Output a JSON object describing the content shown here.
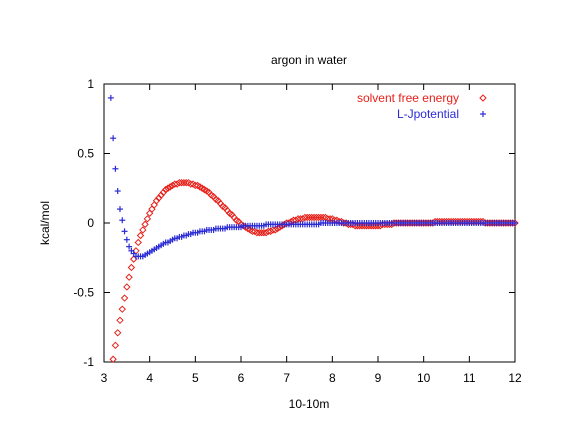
{
  "chart_data": {
    "type": "scatter",
    "title": "argon in water",
    "xlabel": "10-10m",
    "ylabel": "kcal/mol",
    "xlim": [
      3,
      12
    ],
    "ylim": [
      -1,
      1
    ],
    "grid": false,
    "legend_position": "top-right",
    "x_ticks": [
      "3",
      "4",
      "5",
      "6",
      "7",
      "8",
      "9",
      "10",
      "11",
      "12"
    ],
    "y_ticks": [
      "1",
      "0.5",
      "0",
      "-0.5",
      "-1"
    ],
    "series": [
      {
        "name": "solvent free energy",
        "marker": "diamond",
        "color": "#e8201a",
        "x": [
          3.2,
          3.25,
          3.3,
          3.35,
          3.4,
          3.45,
          3.5,
          3.55,
          3.6,
          3.65,
          3.7,
          3.75,
          3.8,
          3.85,
          3.9,
          3.95,
          4.0,
          4.05,
          4.1,
          4.15,
          4.2,
          4.25,
          4.3,
          4.35,
          4.4,
          4.45,
          4.5,
          4.55,
          4.6,
          4.65,
          4.7,
          4.75,
          4.8,
          4.85,
          4.9,
          4.95,
          5.0,
          5.05,
          5.1,
          5.15,
          5.2,
          5.25,
          5.3,
          5.35,
          5.4,
          5.45,
          5.5,
          5.55,
          5.6,
          5.65,
          5.7,
          5.75,
          5.8,
          5.85,
          5.9,
          5.95,
          6.0,
          6.05,
          6.1,
          6.15,
          6.2,
          6.25,
          6.3,
          6.35,
          6.4,
          6.45,
          6.5,
          6.55,
          6.6,
          6.65,
          6.7,
          6.75,
          6.8,
          6.85,
          6.9,
          6.95,
          7.0,
          7.05,
          7.1,
          7.15,
          7.2,
          7.25,
          7.3,
          7.35,
          7.4,
          7.45,
          7.5,
          7.55,
          7.6,
          7.65,
          7.7,
          7.75,
          7.8,
          7.85,
          7.9,
          7.95,
          8.0,
          8.05,
          8.1,
          8.15,
          8.2,
          8.25,
          8.3,
          8.35,
          8.4,
          8.45,
          8.5,
          8.55,
          8.6,
          8.65,
          8.7,
          8.75,
          8.8,
          8.85,
          8.9,
          8.95,
          9.0,
          9.05,
          9.1,
          9.15,
          9.2,
          9.25,
          9.3,
          9.35,
          9.4,
          9.45,
          9.5,
          9.55,
          9.6,
          9.65,
          9.7,
          9.75,
          9.8,
          9.85,
          9.9,
          9.95,
          10.0,
          10.05,
          10.1,
          10.15,
          10.2,
          10.25,
          10.3,
          10.35,
          10.4,
          10.45,
          10.5,
          10.55,
          10.6,
          10.65,
          10.7,
          10.75,
          10.8,
          10.85,
          10.9,
          10.95,
          11.0,
          11.05,
          11.1,
          11.15,
          11.2,
          11.25,
          11.3,
          11.35,
          11.4,
          11.45,
          11.5,
          11.55,
          11.6,
          11.65,
          11.7,
          11.75,
          11.8,
          11.85,
          11.9,
          11.95,
          12.0
        ],
        "y": [
          -0.98,
          -0.88,
          -0.79,
          -0.7,
          -0.62,
          -0.54,
          -0.46,
          -0.39,
          -0.32,
          -0.26,
          -0.2,
          -0.14,
          -0.09,
          -0.05,
          -0.01,
          0.03,
          0.07,
          0.1,
          0.13,
          0.16,
          0.18,
          0.2,
          0.22,
          0.24,
          0.25,
          0.26,
          0.27,
          0.28,
          0.28,
          0.29,
          0.29,
          0.29,
          0.29,
          0.29,
          0.28,
          0.28,
          0.27,
          0.27,
          0.26,
          0.25,
          0.24,
          0.23,
          0.22,
          0.2,
          0.19,
          0.17,
          0.16,
          0.14,
          0.12,
          0.11,
          0.09,
          0.07,
          0.06,
          0.04,
          0.02,
          0.01,
          -0.01,
          -0.02,
          -0.03,
          -0.04,
          -0.05,
          -0.06,
          -0.06,
          -0.07,
          -0.07,
          -0.07,
          -0.07,
          -0.07,
          -0.06,
          -0.06,
          -0.05,
          -0.05,
          -0.04,
          -0.03,
          -0.02,
          -0.01,
          0.0,
          0.0,
          0.01,
          0.02,
          0.02,
          0.03,
          0.03,
          0.03,
          0.04,
          0.04,
          0.04,
          0.04,
          0.04,
          0.04,
          0.04,
          0.04,
          0.04,
          0.04,
          0.03,
          0.03,
          0.03,
          0.02,
          0.02,
          0.01,
          0.01,
          0.0,
          0.0,
          -0.01,
          -0.01,
          -0.01,
          -0.02,
          -0.02,
          -0.02,
          -0.02,
          -0.02,
          -0.02,
          -0.02,
          -0.02,
          -0.02,
          -0.02,
          -0.02,
          -0.02,
          -0.01,
          -0.01,
          -0.01,
          -0.01,
          -0.01,
          0.0,
          0.0,
          0.0,
          0.0,
          0.0,
          0.0,
          0.0,
          0.0,
          0.0,
          0.0,
          0.0,
          0.0,
          0.0,
          0.0,
          0.0,
          0.0,
          0.0,
          0.0,
          0.01,
          0.01,
          0.01,
          0.01,
          0.01,
          0.01,
          0.01,
          0.01,
          0.01,
          0.01,
          0.01,
          0.01,
          0.01,
          0.01,
          0.01,
          0.01,
          0.01,
          0.01,
          0.01,
          0.01,
          0.01,
          0.01,
          0.0,
          0.0,
          0.0,
          0.0,
          0.0,
          0.0,
          0.0,
          0.0,
          0.0,
          0.0,
          0.0,
          0.0,
          0.0,
          0.0
        ]
      },
      {
        "name": "L-Jpotential",
        "marker": "plus",
        "color": "#2b2bd6",
        "x": [
          3.15,
          3.2,
          3.25,
          3.3,
          3.35,
          3.4,
          3.45,
          3.5,
          3.55,
          3.6,
          3.65,
          3.7,
          3.75,
          3.8,
          3.85,
          3.9,
          3.95,
          4.0,
          4.05,
          4.1,
          4.15,
          4.2,
          4.25,
          4.3,
          4.35,
          4.4,
          4.45,
          4.5,
          4.55,
          4.6,
          4.65,
          4.7,
          4.75,
          4.8,
          4.85,
          4.9,
          4.95,
          5.0,
          5.05,
          5.1,
          5.15,
          5.2,
          5.25,
          5.3,
          5.35,
          5.4,
          5.45,
          5.5,
          5.55,
          5.6,
          5.65,
          5.7,
          5.75,
          5.8,
          5.85,
          5.9,
          5.95,
          6.0,
          6.05,
          6.1,
          6.15,
          6.2,
          6.25,
          6.3,
          6.35,
          6.4,
          6.45,
          6.5,
          6.55,
          6.6,
          6.65,
          6.7,
          6.75,
          6.8,
          6.85,
          6.9,
          6.95,
          7.0,
          7.05,
          7.1,
          7.15,
          7.2,
          7.25,
          7.3,
          7.35,
          7.4,
          7.45,
          7.5,
          7.55,
          7.6,
          7.65,
          7.7,
          7.75,
          7.8,
          7.85,
          7.9,
          7.95,
          8.0,
          8.05,
          8.1,
          8.15,
          8.2,
          8.25,
          8.3,
          8.35,
          8.4,
          8.45,
          8.5,
          8.55,
          8.6,
          8.65,
          8.7,
          8.75,
          8.8,
          8.85,
          8.9,
          8.95,
          9.0,
          9.05,
          9.1,
          9.15,
          9.2,
          9.25,
          9.3,
          9.35,
          9.4,
          9.45,
          9.5,
          9.55,
          9.6,
          9.65,
          9.7,
          9.75,
          9.8,
          9.85,
          9.9,
          9.95,
          10.0,
          10.05,
          10.1,
          10.15,
          10.2,
          10.25,
          10.3,
          10.35,
          10.4,
          10.45,
          10.5,
          10.55,
          10.6,
          10.65,
          10.7,
          10.75,
          10.8,
          10.85,
          10.9,
          10.95,
          11.0,
          11.05,
          11.1,
          11.15,
          11.2,
          11.25,
          11.3,
          11.35,
          11.4,
          11.45,
          11.5,
          11.55,
          11.6,
          11.65,
          11.7,
          11.75,
          11.8,
          11.85,
          11.9,
          11.95,
          12.0
        ],
        "y": [
          0.9,
          0.61,
          0.39,
          0.23,
          0.1,
          0.02,
          -0.06,
          -0.12,
          -0.17,
          -0.2,
          -0.22,
          -0.24,
          -0.24,
          -0.24,
          -0.24,
          -0.23,
          -0.22,
          -0.21,
          -0.2,
          -0.19,
          -0.18,
          -0.17,
          -0.16,
          -0.15,
          -0.14,
          -0.14,
          -0.13,
          -0.12,
          -0.11,
          -0.11,
          -0.1,
          -0.1,
          -0.09,
          -0.09,
          -0.08,
          -0.08,
          -0.07,
          -0.07,
          -0.07,
          -0.06,
          -0.06,
          -0.06,
          -0.05,
          -0.05,
          -0.05,
          -0.05,
          -0.04,
          -0.04,
          -0.04,
          -0.04,
          -0.04,
          -0.03,
          -0.03,
          -0.03,
          -0.03,
          -0.03,
          -0.03,
          -0.03,
          -0.02,
          -0.02,
          -0.02,
          -0.02,
          -0.02,
          -0.02,
          -0.02,
          -0.02,
          -0.02,
          -0.02,
          -0.01,
          -0.01,
          -0.01,
          -0.01,
          -0.01,
          -0.01,
          -0.01,
          -0.01,
          -0.01,
          -0.01,
          -0.01,
          -0.01,
          -0.01,
          -0.01,
          -0.01,
          -0.01,
          -0.01,
          -0.01,
          -0.01,
          -0.01,
          -0.01,
          -0.01,
          -0.01,
          -0.01,
          0.0,
          0.0,
          0.0,
          0.0,
          0.0,
          0.0,
          0.0,
          0.0,
          0.0,
          0.0,
          0.0,
          0.0,
          0.0,
          0.0,
          0.0,
          0.0,
          0.0,
          0.0,
          0.0,
          0.0,
          0.0,
          0.0,
          0.0,
          0.0,
          0.0,
          0.0,
          0.0,
          0.0,
          0.0,
          0.0,
          0.0,
          0.0,
          0.0,
          0.0,
          0.0,
          0.0,
          0.0,
          0.0,
          0.0,
          0.0,
          0.0,
          0.0,
          0.0,
          0.0,
          0.0,
          0.0,
          0.0,
          0.0,
          0.0,
          0.0,
          0.0,
          0.0,
          0.0,
          0.0,
          0.0,
          0.0,
          0.0,
          0.0,
          0.0,
          0.0,
          0.0,
          0.0,
          0.0,
          0.0,
          0.0,
          0.0,
          0.0,
          0.0,
          0.0,
          0.0,
          0.0,
          0.0,
          0.0,
          0.0,
          0.0,
          0.0,
          0.0,
          0.0,
          0.0,
          0.0,
          0.0,
          0.0,
          0.0,
          0.0,
          0.0,
          0.0
        ]
      }
    ]
  }
}
